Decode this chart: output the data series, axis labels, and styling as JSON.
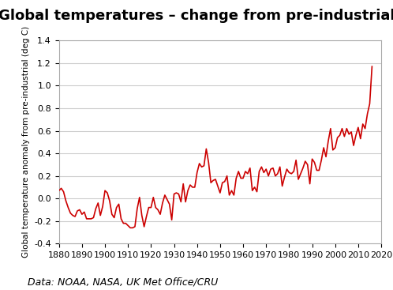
{
  "title": "Global temperatures – change from pre-industrial",
  "ylabel": "Global temperature anomaly from pre-industrial (deg C)",
  "xlabel": "",
  "caption": "Data: NOAA, NASA, UK Met Office/CRU",
  "line_color": "#cc0000",
  "line_width": 1.2,
  "xlim": [
    1880,
    2020
  ],
  "ylim": [
    -0.4,
    1.4
  ],
  "yticks": [
    -0.4,
    -0.2,
    0.0,
    0.2,
    0.4,
    0.6,
    0.8,
    1.0,
    1.2,
    1.4
  ],
  "xticks": [
    1880,
    1890,
    1900,
    1910,
    1920,
    1930,
    1940,
    1950,
    1960,
    1970,
    1980,
    1990,
    2000,
    2010,
    2020
  ],
  "years": [
    1880,
    1881,
    1882,
    1883,
    1884,
    1885,
    1886,
    1887,
    1888,
    1889,
    1890,
    1891,
    1892,
    1893,
    1894,
    1895,
    1896,
    1897,
    1898,
    1899,
    1900,
    1901,
    1902,
    1903,
    1904,
    1905,
    1906,
    1907,
    1908,
    1909,
    1910,
    1911,
    1912,
    1913,
    1914,
    1915,
    1916,
    1917,
    1918,
    1919,
    1920,
    1921,
    1922,
    1923,
    1924,
    1925,
    1926,
    1927,
    1928,
    1929,
    1930,
    1931,
    1932,
    1933,
    1934,
    1935,
    1936,
    1937,
    1938,
    1939,
    1940,
    1941,
    1942,
    1943,
    1944,
    1945,
    1946,
    1947,
    1948,
    1949,
    1950,
    1951,
    1952,
    1953,
    1954,
    1955,
    1956,
    1957,
    1958,
    1959,
    1960,
    1961,
    1962,
    1963,
    1964,
    1965,
    1966,
    1967,
    1968,
    1969,
    1970,
    1971,
    1972,
    1973,
    1974,
    1975,
    1976,
    1977,
    1978,
    1979,
    1980,
    1981,
    1982,
    1983,
    1984,
    1985,
    1986,
    1987,
    1988,
    1989,
    1990,
    1991,
    1992,
    1993,
    1994,
    1995,
    1996,
    1997,
    1998,
    1999,
    2000,
    2001,
    2002,
    2003,
    2004,
    2005,
    2006,
    2007,
    2008,
    2009,
    2010,
    2011,
    2012,
    2013,
    2014,
    2015,
    2016
  ],
  "anomalies": [
    0.07,
    0.09,
    0.06,
    -0.02,
    -0.08,
    -0.13,
    -0.15,
    -0.16,
    -0.11,
    -0.1,
    -0.14,
    -0.12,
    -0.18,
    -0.18,
    -0.18,
    -0.17,
    -0.09,
    -0.04,
    -0.15,
    -0.07,
    0.07,
    0.05,
    -0.02,
    -0.14,
    -0.17,
    -0.08,
    -0.05,
    -0.18,
    -0.22,
    -0.22,
    -0.24,
    -0.26,
    -0.26,
    -0.25,
    -0.09,
    0.01,
    -0.15,
    -0.25,
    -0.16,
    -0.08,
    -0.08,
    0.01,
    -0.08,
    -0.1,
    -0.14,
    -0.04,
    0.03,
    -0.01,
    -0.05,
    -0.19,
    0.04,
    0.05,
    0.04,
    -0.03,
    0.13,
    -0.03,
    0.07,
    0.12,
    0.1,
    0.1,
    0.23,
    0.31,
    0.28,
    0.29,
    0.44,
    0.32,
    0.14,
    0.16,
    0.17,
    0.11,
    0.05,
    0.14,
    0.15,
    0.2,
    0.03,
    0.07,
    0.03,
    0.18,
    0.24,
    0.18,
    0.18,
    0.24,
    0.22,
    0.27,
    0.07,
    0.1,
    0.06,
    0.24,
    0.28,
    0.23,
    0.26,
    0.2,
    0.26,
    0.27,
    0.2,
    0.22,
    0.28,
    0.11,
    0.19,
    0.26,
    0.23,
    0.22,
    0.24,
    0.34,
    0.17,
    0.22,
    0.27,
    0.33,
    0.3,
    0.13,
    0.35,
    0.32,
    0.25,
    0.25,
    0.34,
    0.45,
    0.37,
    0.51,
    0.62,
    0.43,
    0.45,
    0.54,
    0.56,
    0.62,
    0.55,
    0.62,
    0.57,
    0.59,
    0.47,
    0.56,
    0.63,
    0.53,
    0.66,
    0.62,
    0.75,
    0.84,
    1.17
  ],
  "background_color": "#ffffff",
  "plot_bg_color": "#ffffff",
  "grid_color": "#cccccc",
  "title_fontsize": 13,
  "label_fontsize": 7.5,
  "tick_fontsize": 8,
  "caption_fontsize": 9
}
